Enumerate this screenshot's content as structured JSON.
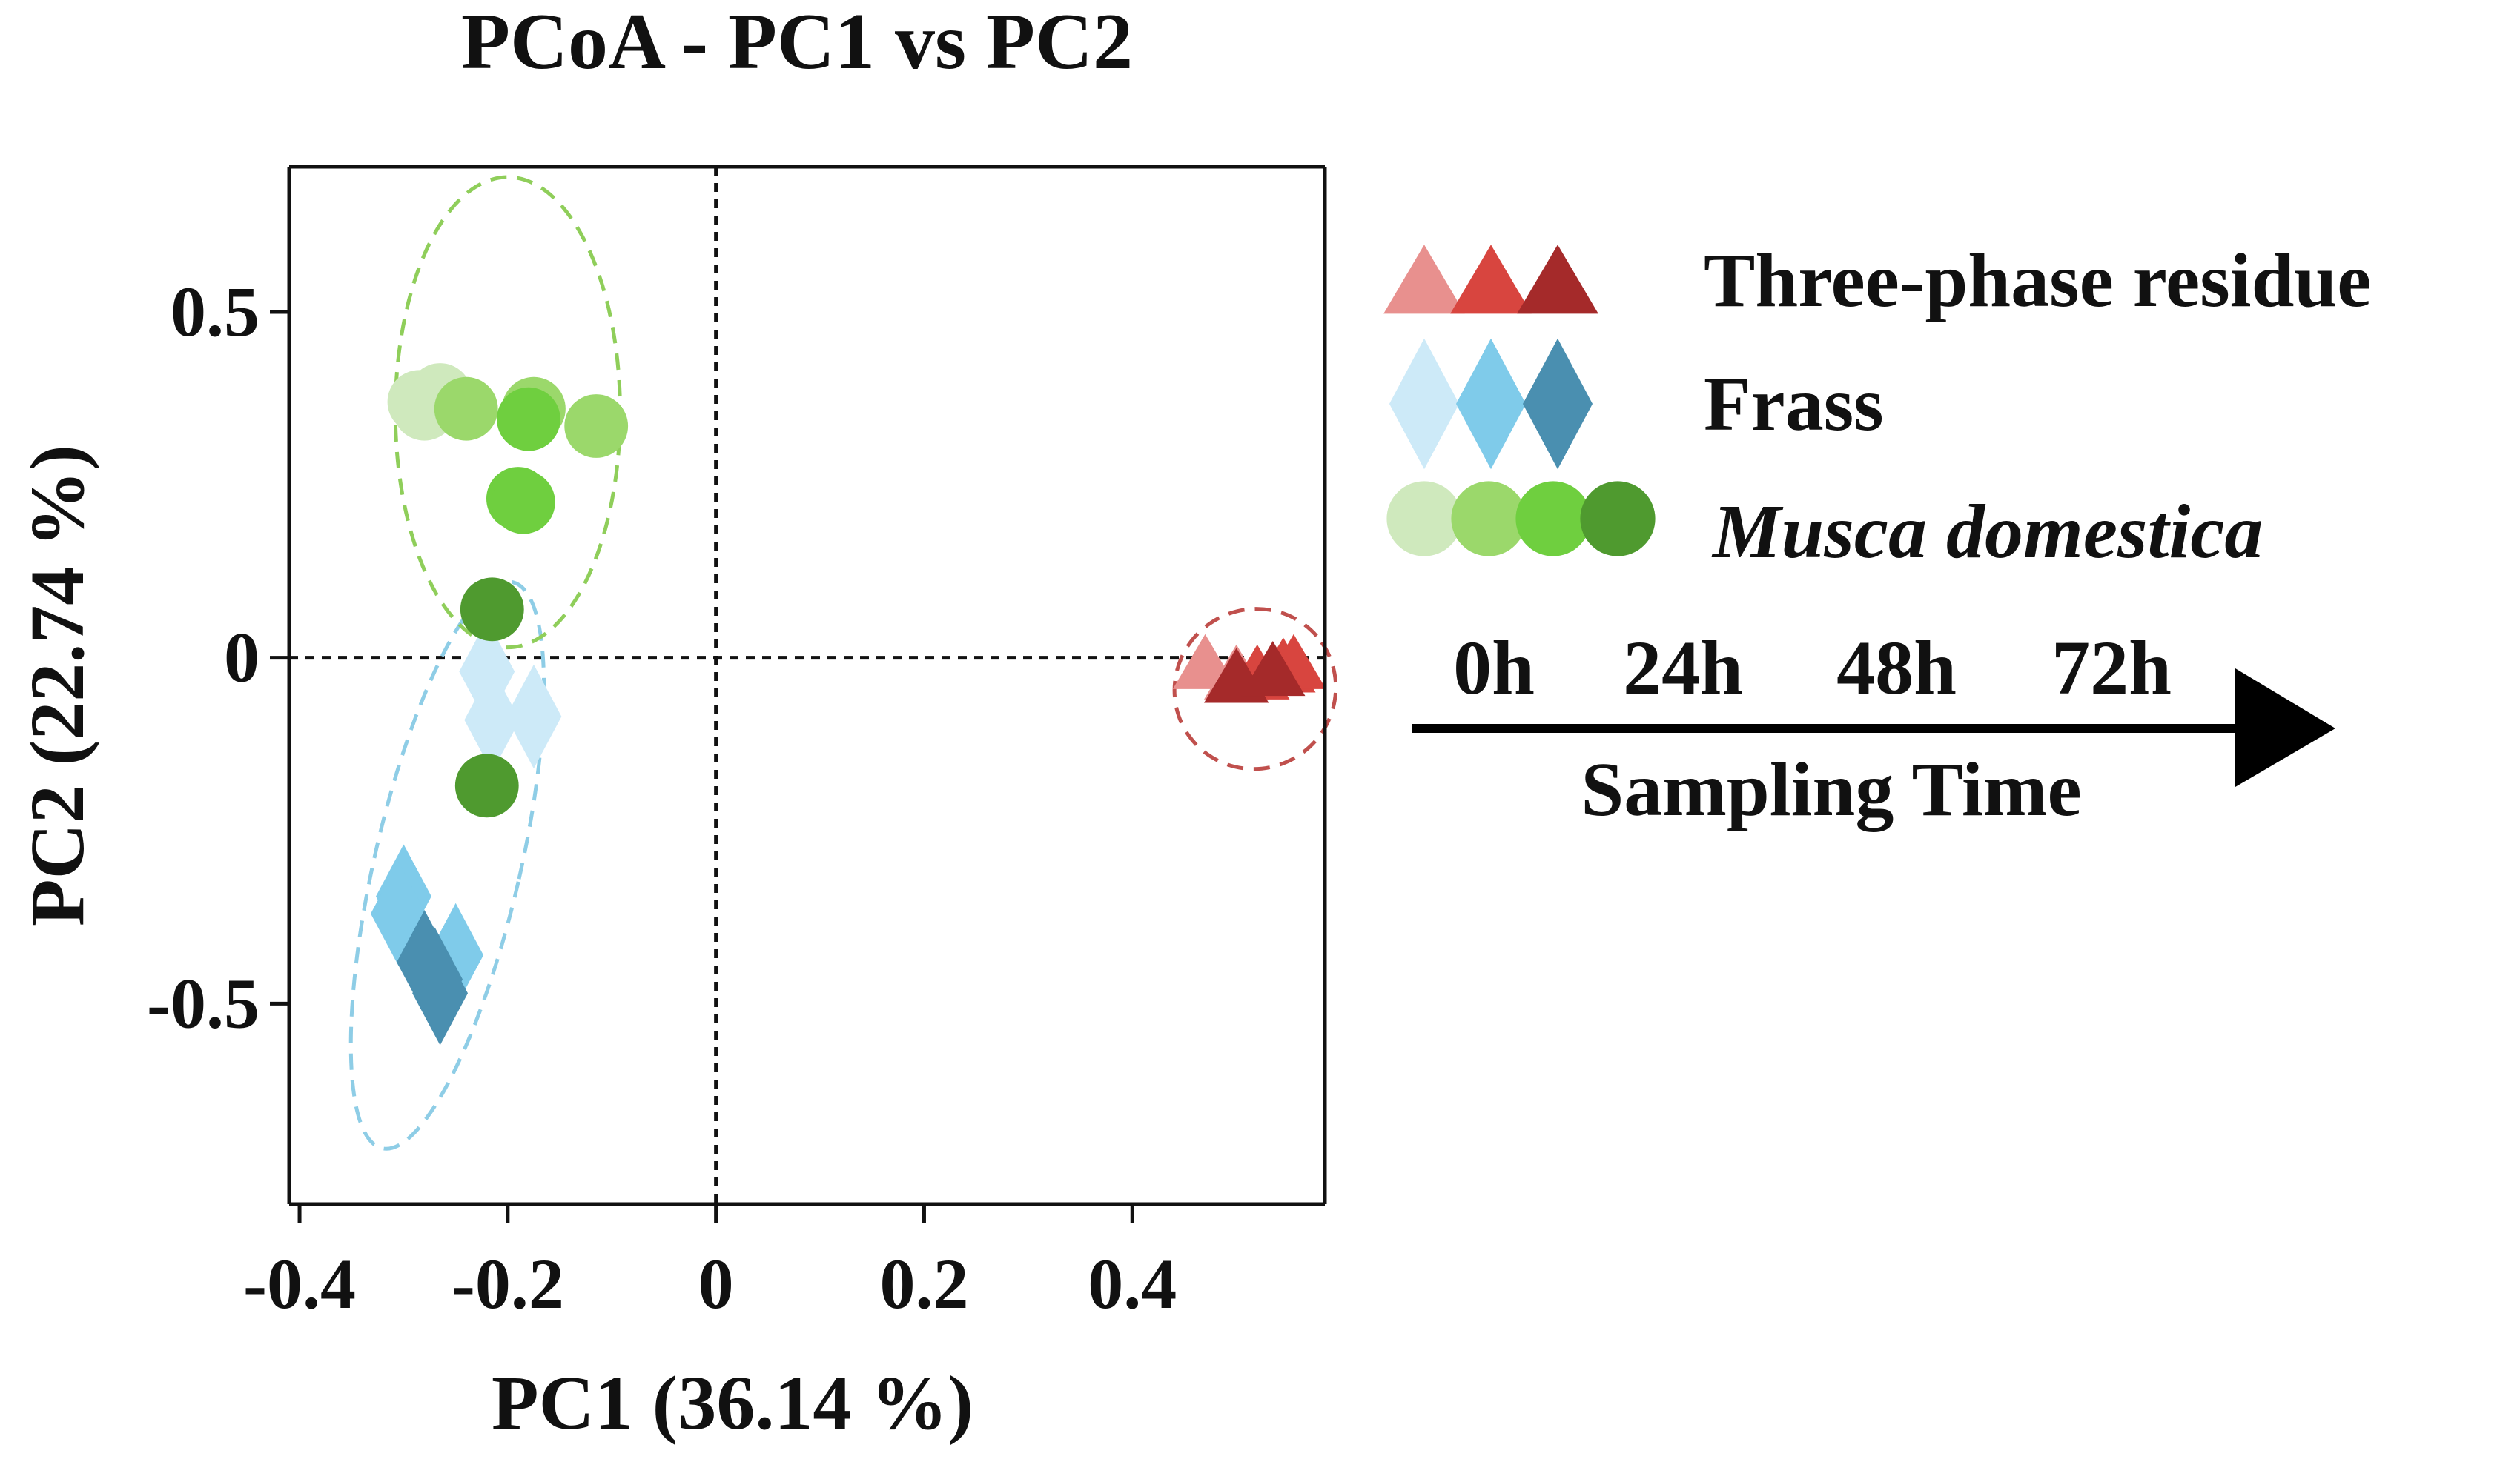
{
  "chart_data": {
    "type": "scatter",
    "title": "PCoA - PC1 vs PC2",
    "xlabel": "PC1 (36.14 %)",
    "ylabel": "PC2 (22.74 %)",
    "xlim": [
      -0.41,
      0.585
    ],
    "ylim": [
      -0.79,
      0.71
    ],
    "xticks": [
      -0.4,
      -0.2,
      0,
      0.2,
      0.4
    ],
    "xtick_labels": [
      "-0.4",
      "-0.2",
      "0",
      "0.2",
      "0.4"
    ],
    "yticks": [
      0.5,
      0,
      -0.5
    ],
    "ytick_labels": [
      "0.5",
      "0",
      "-0.5"
    ],
    "grid": false,
    "reference_lines": {
      "x": 0,
      "y": 0
    },
    "groups": [
      {
        "name": "Three-phase residue",
        "marker": "triangle",
        "ellipse_color": "#c0504d",
        "series": [
          {
            "time": "0h",
            "color": "#e8908e",
            "points": [
              [
                0.47,
                -0.015
              ],
              [
                0.5,
                -0.03
              ]
            ]
          },
          {
            "time": "24h",
            "color": "#d8453f",
            "points": [
              [
                0.52,
                -0.03
              ],
              [
                0.545,
                -0.02
              ],
              [
                0.555,
                -0.015
              ]
            ]
          },
          {
            "time": "48h",
            "color": "#a52a2a",
            "points": [
              [
                0.5,
                -0.035
              ],
              [
                0.535,
                -0.025
              ]
            ]
          }
        ],
        "ellipse": {
          "cx": 0.518,
          "cy": -0.045,
          "rx": 0.078,
          "ry": 0.115,
          "angle": -35
        }
      },
      {
        "name": "Frass",
        "marker": "diamond",
        "ellipse_color": "#8ecde6",
        "series": [
          {
            "time": "0h",
            "color": "#cdeaf8",
            "points": [
              [
                -0.22,
                -0.02
              ],
              [
                -0.215,
                -0.09
              ],
              [
                -0.175,
                -0.085
              ]
            ]
          },
          {
            "time": "24h",
            "color": "#7fcbea",
            "points": [
              [
                -0.3,
                -0.345
              ],
              [
                -0.305,
                -0.37
              ],
              [
                -0.25,
                -0.43
              ]
            ]
          },
          {
            "time": "48h",
            "color": "#4a8fb0",
            "points": [
              [
                -0.28,
                -0.44
              ],
              [
                -0.27,
                -0.465
              ],
              [
                -0.265,
                -0.485
              ]
            ]
          }
        ],
        "ellipse": {
          "cx": -0.258,
          "cy": -0.3,
          "rx": 0.07,
          "ry": 0.42,
          "angle": 13
        }
      },
      {
        "name": "Musca domestica",
        "marker": "circle",
        "ellipse_color": "#8fce5a",
        "series": [
          {
            "time": "0h",
            "color": "#cfe9bd",
            "points": [
              [
                -0.285,
                0.37
              ],
              [
                -0.265,
                0.38
              ],
              [
                -0.28,
                0.36
              ]
            ]
          },
          {
            "time": "24h",
            "color": "#9bd86b",
            "points": [
              [
                -0.24,
                0.36
              ],
              [
                -0.175,
                0.36
              ],
              [
                -0.115,
                0.335
              ]
            ]
          },
          {
            "time": "48h",
            "color": "#6fcf3f",
            "points": [
              [
                -0.18,
                0.345
              ],
              [
                -0.19,
                0.23
              ],
              [
                -0.185,
                0.225
              ]
            ]
          },
          {
            "time": "72h",
            "color": "#4f9a2f",
            "points": [
              [
                -0.215,
                0.07
              ],
              [
                -0.22,
                -0.185
              ]
            ]
          }
        ],
        "ellipse": {
          "cx": -0.2,
          "cy": 0.355,
          "rx": 0.108,
          "ry": 0.34,
          "angle": 0
        }
      }
    ],
    "legend": {
      "placement": "right",
      "entries": [
        "Three-phase residue",
        "Frass",
        "Musca domestica"
      ],
      "time_labels": [
        "0h",
        "24h",
        "48h",
        "72h"
      ],
      "time_axis_label": "Sampling Time",
      "swatches": {
        "Three-phase residue": [
          "#e8908e",
          "#d8453f",
          "#a52a2a"
        ],
        "Frass": [
          "#cdeaf8",
          "#7fcbea",
          "#4a8fb0"
        ],
        "Musca domestica": [
          "#cfe9bd",
          "#9bd86b",
          "#6fcf3f",
          "#4f9a2f"
        ]
      }
    }
  }
}
